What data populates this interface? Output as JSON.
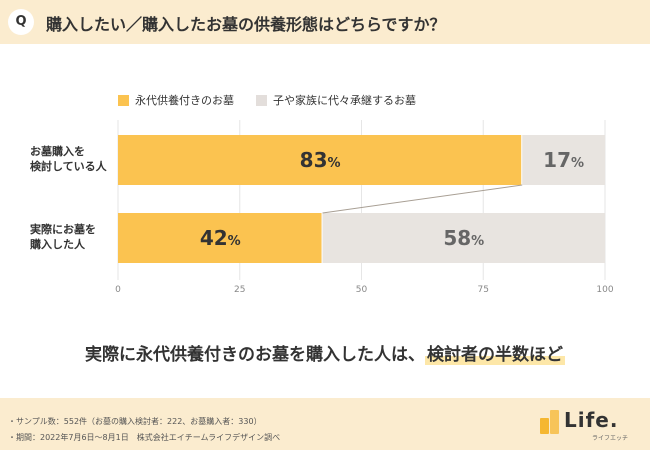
{
  "header": {
    "badge": "Q",
    "question": "購入したい／購入したお墓の供養形態はどちらですか？"
  },
  "legend": [
    {
      "label": "永代供養付きのお墓",
      "color": "#fbc350"
    },
    {
      "label": "子や家族に代々承継するお墓",
      "color": "#e3dedb"
    }
  ],
  "chart_data": {
    "type": "bar",
    "orientation": "horizontal",
    "stacked": true,
    "categories": [
      "お墓購入を検討している人",
      "実際にお墓を購入した人"
    ],
    "category_lines": [
      [
        "お墓購入を",
        "検討している人"
      ],
      [
        "実際にお墓を",
        "購入した人"
      ]
    ],
    "series": [
      {
        "name": "永代供養付きのお墓",
        "values": [
          83,
          42
        ],
        "color": "#fbc350",
        "text_color": "#333333"
      },
      {
        "name": "子や家族に代々承継するお墓",
        "values": [
          17,
          58
        ],
        "color": "#e8e4e0",
        "text_color": "#666666"
      }
    ],
    "unit": "%",
    "xlim": [
      0,
      100
    ],
    "xticks": [
      0,
      25,
      50,
      75,
      100
    ],
    "grid": true,
    "legend_position": "top-left",
    "connector": true
  },
  "conclusion": {
    "text": "実際に永代供養付きのお墓を購入した人は、",
    "highlight": "検討者の半数ほど"
  },
  "footer": {
    "notes": [
      "・サンプル数：552件（お墓の購入検討者：222、お墓購入者：330）",
      "・期間：2022年7月6日〜8月1日　株式会社エイチームライフデザイン調べ"
    ],
    "logo_text": "Life.",
    "logo_sub": "ライフエッチ"
  }
}
